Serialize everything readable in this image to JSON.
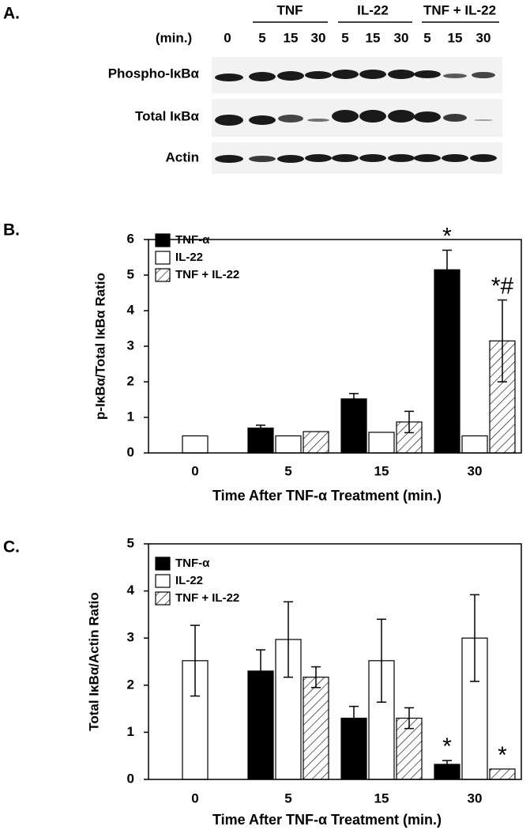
{
  "panel_a": {
    "label": "A.",
    "groups": [
      "TNF",
      "IL-22",
      "TNF + IL-22"
    ],
    "time_label": "(min.)",
    "lanes": [
      "0",
      "5",
      "15",
      "30",
      "5",
      "15",
      "30",
      "5",
      "15",
      "30"
    ],
    "rows": [
      "Phospho-IκBα",
      "Total IκBα",
      "Actin"
    ]
  },
  "chart_data": [
    {
      "type": "bar",
      "panel_label": "B.",
      "ylabel": "p-IκBα/Total IκBα Ratio",
      "xlabel": "Time After TNF-α Treatment (min.)",
      "categories": [
        "0",
        "5",
        "15",
        "30"
      ],
      "ylim": [
        0,
        6
      ],
      "yticks": [
        0,
        1,
        2,
        3,
        4,
        5,
        6
      ],
      "series": [
        {
          "name": "TNF-α",
          "color": "#000000",
          "values": [
            null,
            0.7,
            1.52,
            5.15
          ],
          "errors": [
            null,
            0.08,
            0.15,
            0.55
          ],
          "annotations": [
            null,
            null,
            null,
            "*"
          ]
        },
        {
          "name": "IL-22",
          "color": "#ffffff",
          "values": [
            0.48,
            0.48,
            0.58,
            0.48
          ]
        },
        {
          "name": "TNF + IL-22",
          "color": "#ffffff",
          "hatch": true,
          "values": [
            null,
            0.6,
            0.87,
            3.15
          ],
          "errors": [
            null,
            null,
            0.3,
            1.15
          ],
          "annotations": [
            null,
            null,
            null,
            "*#"
          ]
        }
      ]
    },
    {
      "type": "bar",
      "panel_label": "C.",
      "ylabel": "Total IκBα/Actin Ratio",
      "xlabel": "Time After TNF-α Treatment (min.)",
      "categories": [
        "0",
        "5",
        "15",
        "30"
      ],
      "ylim": [
        0,
        5
      ],
      "yticks": [
        0,
        1,
        2,
        3,
        4,
        5
      ],
      "series": [
        {
          "name": "TNF-α",
          "color": "#000000",
          "values": [
            null,
            2.3,
            1.3,
            0.32
          ],
          "errors": [
            null,
            0.45,
            0.25,
            0.08
          ],
          "annotations": [
            null,
            null,
            null,
            "*"
          ]
        },
        {
          "name": "IL-22",
          "color": "#ffffff",
          "values": [
            2.52,
            2.97,
            2.52,
            3.0
          ],
          "errors": [
            0.75,
            0.8,
            0.88,
            0.92
          ]
        },
        {
          "name": "TNF + IL-22",
          "color": "#ffffff",
          "hatch": true,
          "values": [
            null,
            2.17,
            1.3,
            0.22
          ],
          "errors": [
            null,
            0.22,
            0.22,
            null
          ],
          "annotations": [
            null,
            null,
            null,
            "*"
          ]
        }
      ]
    }
  ]
}
